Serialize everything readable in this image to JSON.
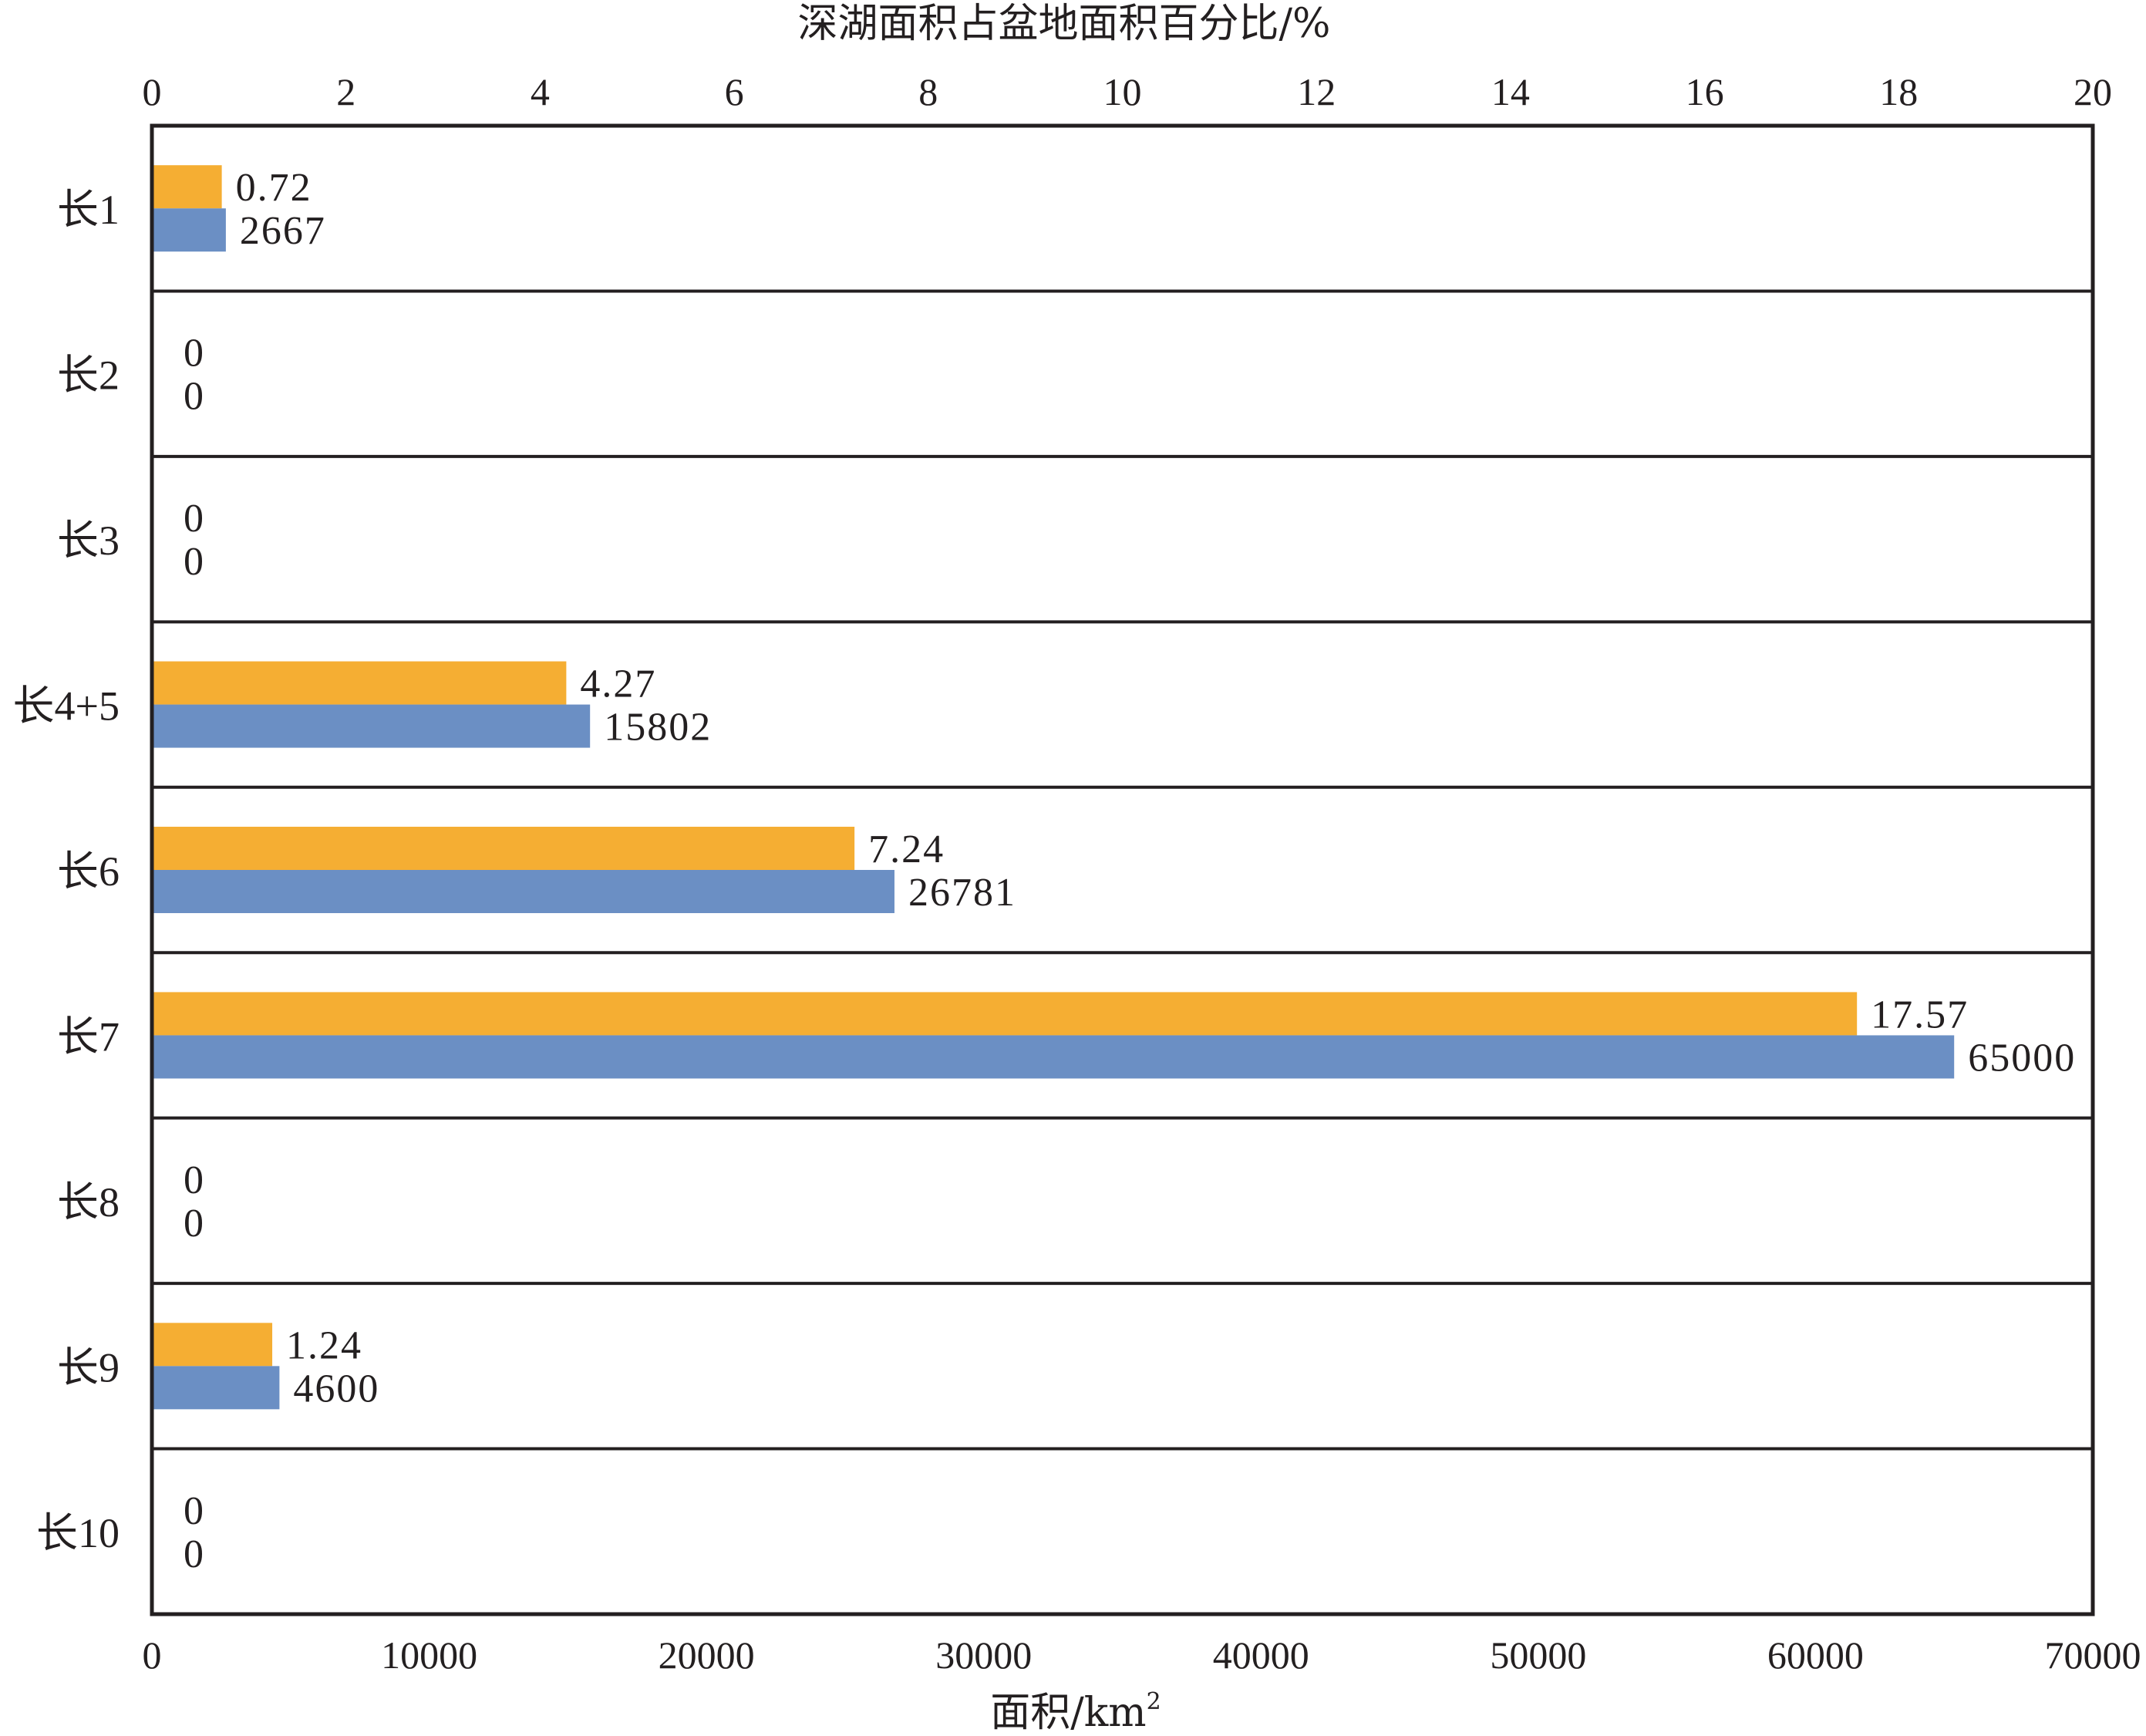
{
  "chart_data": {
    "type": "bar",
    "orientation": "horizontal",
    "categories": [
      "长1",
      "长2",
      "长3",
      "长4+5",
      "长6",
      "长7",
      "长8",
      "长9",
      "长10"
    ],
    "series": [
      {
        "values": [
          0.72,
          0,
          0,
          4.27,
          7.24,
          17.57,
          0,
          1.24,
          0
        ],
        "axis": "top",
        "color": "#f5ae33"
      },
      {
        "values": [
          2667,
          0,
          0,
          15802,
          26781,
          65000,
          0,
          4600,
          0
        ],
        "axis": "bottom",
        "color": "#6b8fc4"
      }
    ],
    "top_axis": {
      "title": "深湖面积占盆地面积百分比/%",
      "range": [
        0,
        20
      ],
      "ticks": [
        "0",
        "2",
        "4",
        "6",
        "8",
        "10",
        "12",
        "14",
        "16",
        "18",
        "20"
      ]
    },
    "bottom_axis": {
      "title_main": "面积/km",
      "title_sup": "2",
      "range": [
        0,
        70000
      ],
      "ticks": [
        "0",
        "10000",
        "20000",
        "30000",
        "40000",
        "50000",
        "60000",
        "70000"
      ]
    },
    "grid": "horizontal separators between categories",
    "legend": "none"
  }
}
